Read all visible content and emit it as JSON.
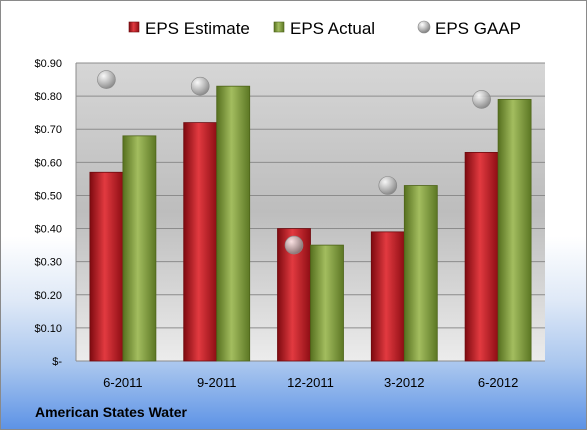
{
  "chart_data": {
    "type": "bar",
    "categories": [
      "6-2011",
      "9-2011",
      "12-2011",
      "3-2012",
      "6-2012"
    ],
    "series": [
      {
        "name": "EPS Estimate",
        "kind": "bar",
        "color": "#c0141e",
        "values": [
          0.57,
          0.72,
          0.4,
          0.39,
          0.63
        ]
      },
      {
        "name": "EPS Actual",
        "kind": "bar",
        "color": "#7f9b3a",
        "values": [
          0.68,
          0.83,
          0.35,
          0.53,
          0.79
        ]
      },
      {
        "name": "EPS GAAP",
        "kind": "marker",
        "color": "#b5b5b5",
        "values": [
          0.85,
          0.83,
          0.35,
          0.53,
          0.79
        ]
      }
    ],
    "ylim": [
      0,
      0.9
    ],
    "yticks": [
      0,
      0.1,
      0.2,
      0.3,
      0.4,
      0.5,
      0.6,
      0.7,
      0.8,
      0.9
    ],
    "ytick_labels": [
      "$-",
      "$0.10",
      "$0.20",
      "$0.30",
      "$0.40",
      "$0.50",
      "$0.60",
      "$0.70",
      "$0.80",
      "$0.90"
    ],
    "grid": true,
    "legend_position": "top",
    "title": "",
    "xlabel": "",
    "ylabel": ""
  },
  "company": "American States Water"
}
